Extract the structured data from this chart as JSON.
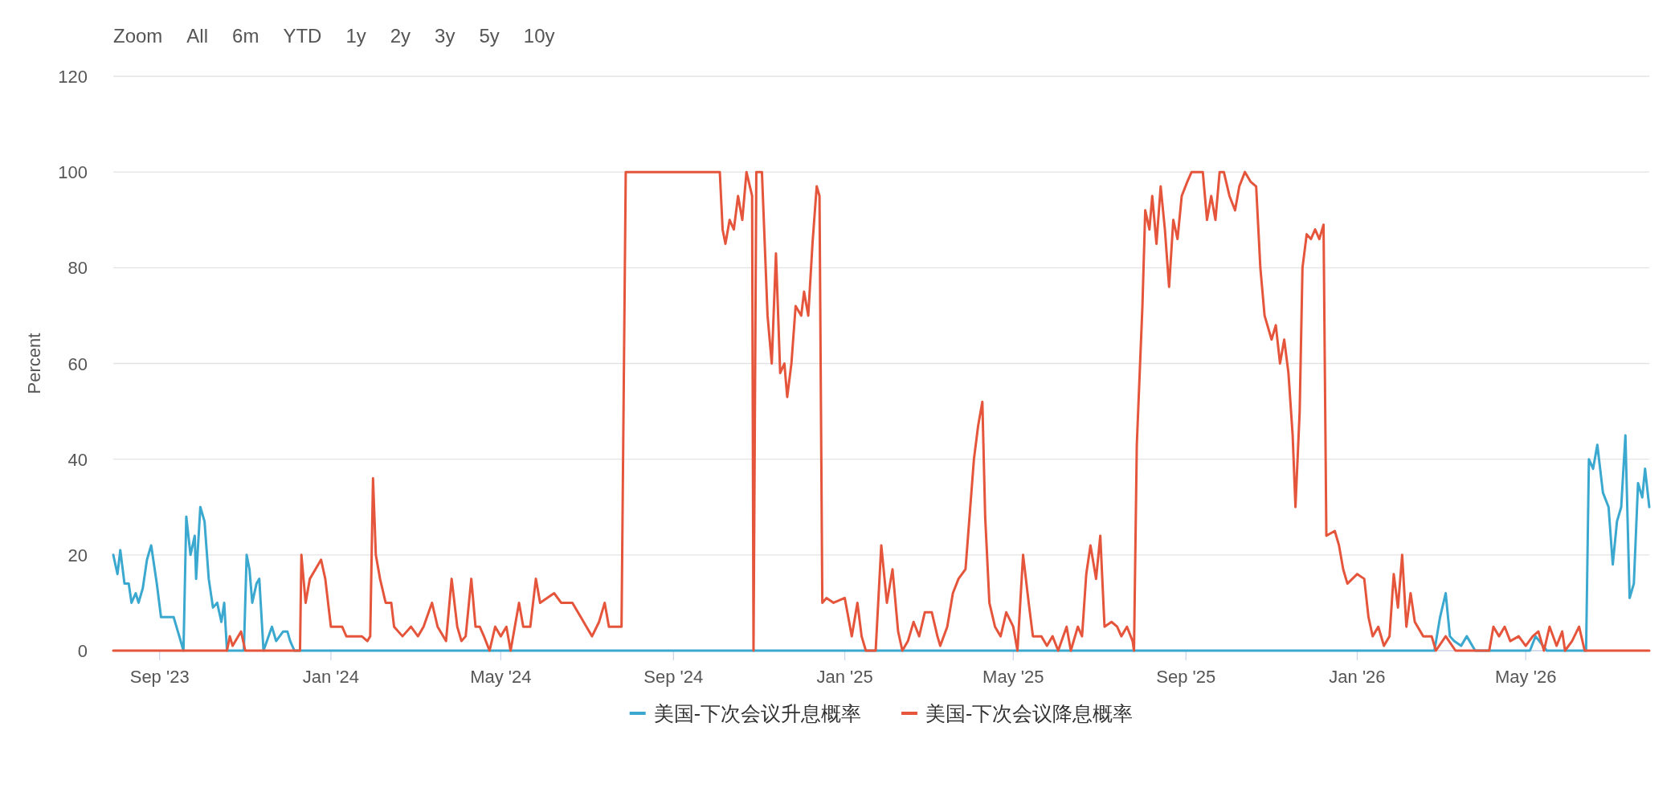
{
  "chart_data": {
    "type": "line",
    "ylabel": "Percent",
    "annotations": [
      "Zoom",
      "All",
      "6m",
      "YTD",
      "1y",
      "2y",
      "3y",
      "5y",
      "10y"
    ],
    "xlim": [
      "2023-07-30",
      "2026-07-28"
    ],
    "xticks": [
      {
        "value": "2023-09-01",
        "label": "Sep '23"
      },
      {
        "value": "2024-01-01",
        "label": "Jan '24"
      },
      {
        "value": "2024-05-01",
        "label": "May '24"
      },
      {
        "value": "2024-09-01",
        "label": "Sep '24"
      },
      {
        "value": "2025-01-01",
        "label": "Jan '25"
      },
      {
        "value": "2025-05-01",
        "label": "May '25"
      },
      {
        "value": "2025-09-01",
        "label": "Sep '25"
      },
      {
        "value": "2026-01-01",
        "label": "Jan '26"
      },
      {
        "value": "2026-05-01",
        "label": "May '26"
      }
    ],
    "ylim": [
      0,
      120
    ],
    "yticks": [
      0,
      20,
      40,
      60,
      80,
      100,
      120
    ],
    "grid": "y",
    "legend": "bottom",
    "marker": "none",
    "line_style": "solid",
    "series": [
      {
        "name": "美国-下次会议升息概率",
        "color": "#3ba8cf",
        "x": [
          "2023-07-30",
          "2023-08-02",
          "2023-08-04",
          "2023-08-07",
          "2023-08-10",
          "2023-08-12",
          "2023-08-15",
          "2023-08-17",
          "2023-08-20",
          "2023-08-23",
          "2023-08-26",
          "2023-08-30",
          "2023-09-02",
          "2023-09-11",
          "2023-09-14",
          "2023-09-17",
          "2023-09-18",
          "2023-09-20",
          "2023-09-23",
          "2023-09-26",
          "2023-09-27",
          "2023-09-30",
          "2023-10-03",
          "2023-10-06",
          "2023-10-09",
          "2023-10-12",
          "2023-10-15",
          "2023-10-17",
          "2023-10-19",
          "2023-10-31",
          "2023-11-02",
          "2023-11-04",
          "2023-11-06",
          "2023-11-09",
          "2023-11-11",
          "2023-11-14",
          "2023-11-20",
          "2023-11-23",
          "2023-11-28",
          "2023-12-01",
          "2023-12-03",
          "2023-12-06",
          "2026-02-25",
          "2026-03-01",
          "2026-03-05",
          "2026-03-08",
          "2026-03-11",
          "2026-03-16",
          "2026-03-20",
          "2026-03-26",
          "2026-05-04",
          "2026-05-08",
          "2026-05-16",
          "2026-06-13",
          "2026-06-15",
          "2026-06-18",
          "2026-06-21",
          "2026-06-25",
          "2026-06-29",
          "2026-07-02",
          "2026-07-05",
          "2026-07-08",
          "2026-07-11",
          "2026-07-14",
          "2026-07-17",
          "2026-07-20",
          "2026-07-23",
          "2026-07-25",
          "2026-07-28"
        ],
        "values": [
          20,
          16,
          21,
          14,
          14,
          10,
          12,
          10,
          13,
          19,
          22,
          14,
          7,
          7,
          4,
          1,
          0,
          28,
          20,
          24,
          15,
          30,
          27,
          15,
          9,
          10,
          6,
          10,
          0,
          0,
          20,
          17,
          10,
          14,
          15,
          0,
          5,
          2,
          4,
          4,
          2,
          0,
          0,
          7,
          12,
          3,
          2,
          1,
          3,
          0,
          0,
          3,
          0,
          0,
          40,
          38,
          43,
          33,
          30,
          18,
          27,
          30,
          45,
          11,
          14,
          35,
          32,
          38,
          30
        ]
      },
      {
        "name": "美国-下次会议降息概率",
        "color": "#e5553b",
        "x": [
          "2023-07-30",
          "2023-10-19",
          "2023-10-21",
          "2023-10-23",
          "2023-10-29",
          "2023-11-01",
          "2023-12-10",
          "2023-12-11",
          "2023-12-14",
          "2023-12-17",
          "2023-12-21",
          "2023-12-25",
          "2023-12-28",
          "2024-01-01",
          "2024-01-09",
          "2024-01-12",
          "2024-01-23",
          "2024-01-27",
          "2024-01-29",
          "2024-01-31",
          "2024-02-02",
          "2024-02-05",
          "2024-02-09",
          "2024-02-13",
          "2024-02-15",
          "2024-02-21",
          "2024-02-27",
          "2024-03-03",
          "2024-03-07",
          "2024-03-13",
          "2024-03-17",
          "2024-03-23",
          "2024-03-27",
          "2024-03-31",
          "2024-04-03",
          "2024-04-06",
          "2024-04-10",
          "2024-04-13",
          "2024-04-16",
          "2024-04-19",
          "2024-04-23",
          "2024-04-27",
          "2024-05-01",
          "2024-05-05",
          "2024-05-08",
          "2024-05-14",
          "2024-05-17",
          "2024-05-22",
          "2024-05-26",
          "2024-05-29",
          "2024-06-08",
          "2024-06-13",
          "2024-06-21",
          "2024-06-27",
          "2024-07-01",
          "2024-07-05",
          "2024-07-10",
          "2024-07-14",
          "2024-07-17",
          "2024-07-22",
          "2024-07-26",
          "2024-07-29",
          "2024-08-24",
          "2024-10-04",
          "2024-10-06",
          "2024-10-08",
          "2024-10-11",
          "2024-10-14",
          "2024-10-17",
          "2024-10-20",
          "2024-10-23",
          "2024-10-27",
          "2024-10-28",
          "2024-10-30",
          "2024-11-03",
          "2024-11-07",
          "2024-11-10",
          "2024-11-13",
          "2024-11-16",
          "2024-11-19",
          "2024-11-21",
          "2024-11-24",
          "2024-11-27",
          "2024-12-01",
          "2024-12-03",
          "2024-12-06",
          "2024-12-09",
          "2024-12-12",
          "2024-12-14",
          "2024-12-16",
          "2024-12-19",
          "2024-12-24",
          "2025-01-01",
          "2025-01-06",
          "2025-01-10",
          "2025-01-13",
          "2025-01-16",
          "2025-01-23",
          "2025-01-27",
          "2025-01-31",
          "2025-02-04",
          "2025-02-08",
          "2025-02-11",
          "2025-02-15",
          "2025-02-19",
          "2025-02-23",
          "2025-02-27",
          "2025-03-04",
          "2025-03-08",
          "2025-03-10",
          "2025-03-15",
          "2025-03-19",
          "2025-03-23",
          "2025-03-28",
          "2025-04-03",
          "2025-04-06",
          "2025-04-09",
          "2025-04-11",
          "2025-04-14",
          "2025-04-18",
          "2025-04-22",
          "2025-04-26",
          "2025-05-01",
          "2025-05-04",
          "2025-05-08",
          "2025-05-12",
          "2025-05-15",
          "2025-05-21",
          "2025-05-25",
          "2025-05-29",
          "2025-06-02",
          "2025-06-08",
          "2025-06-11",
          "2025-06-16",
          "2025-06-19",
          "2025-06-22",
          "2025-06-25",
          "2025-06-29",
          "2025-07-02",
          "2025-07-05",
          "2025-07-10",
          "2025-07-14",
          "2025-07-17",
          "2025-07-21",
          "2025-07-25",
          "2025-07-26",
          "2025-07-28",
          "2025-08-01",
          "2025-08-03",
          "2025-08-06",
          "2025-08-08",
          "2025-08-11",
          "2025-08-14",
          "2025-08-17",
          "2025-08-20",
          "2025-08-23",
          "2025-08-26",
          "2025-08-29",
          "2025-09-02",
          "2025-09-05",
          "2025-09-13",
          "2025-09-16",
          "2025-09-19",
          "2025-09-22",
          "2025-09-25",
          "2025-09-28",
          "2025-10-02",
          "2025-10-06",
          "2025-10-09",
          "2025-10-13",
          "2025-10-17",
          "2025-10-21",
          "2025-10-24",
          "2025-10-27",
          "2025-11-01",
          "2025-11-04",
          "2025-11-07",
          "2025-11-10",
          "2025-11-13",
          "2025-11-16",
          "2025-11-18",
          "2025-11-21",
          "2025-11-23",
          "2025-11-26",
          "2025-11-29",
          "2025-12-02",
          "2025-12-05",
          "2025-12-08",
          "2025-12-10",
          "2025-12-16",
          "2025-12-19",
          "2025-12-22",
          "2025-12-25",
          "2026-01-01",
          "2026-01-06",
          "2026-01-09",
          "2026-01-12",
          "2026-01-16",
          "2026-01-20",
          "2026-01-24",
          "2026-01-27",
          "2026-01-30",
          "2026-02-02",
          "2026-02-05",
          "2026-02-08",
          "2026-02-11",
          "2026-02-17",
          "2026-02-23",
          "2026-02-26",
          "2026-03-05",
          "2026-03-12",
          "2026-04-05",
          "2026-04-08",
          "2026-04-12",
          "2026-04-16",
          "2026-04-20",
          "2026-04-26",
          "2026-05-01",
          "2026-05-06",
          "2026-05-10",
          "2026-05-14",
          "2026-05-18",
          "2026-05-23",
          "2026-05-27",
          "2026-05-29",
          "2026-06-03",
          "2026-06-08",
          "2026-06-12",
          "2026-07-28"
        ],
        "values": [
          0,
          0,
          3,
          1,
          4,
          0,
          0,
          20,
          10,
          15,
          17,
          19,
          15,
          5,
          5,
          3,
          3,
          2,
          3,
          36,
          20,
          15,
          10,
          10,
          5,
          3,
          5,
          3,
          5,
          10,
          5,
          2,
          15,
          5,
          2,
          3,
          15,
          5,
          5,
          3,
          0,
          5,
          3,
          5,
          0,
          10,
          5,
          5,
          15,
          10,
          12,
          10,
          10,
          7,
          5,
          3,
          6,
          10,
          5,
          5,
          5,
          100,
          100,
          100,
          88,
          85,
          90,
          88,
          95,
          90,
          100,
          95,
          0,
          100,
          100,
          70,
          60,
          83,
          58,
          60,
          53,
          60,
          72,
          70,
          75,
          70,
          85,
          97,
          95,
          10,
          11,
          10,
          11,
          3,
          10,
          3,
          0,
          0,
          22,
          10,
          17,
          4,
          0,
          2,
          6,
          3,
          8,
          8,
          3,
          1,
          5,
          12,
          15,
          17,
          40,
          47,
          52,
          28,
          10,
          5,
          3,
          8,
          5,
          0,
          20,
          10,
          3,
          3,
          1,
          3,
          0,
          5,
          0,
          5,
          3,
          16,
          22,
          15,
          24,
          5,
          6,
          5,
          3,
          5,
          2,
          0,
          43,
          72,
          92,
          88,
          95,
          85,
          97,
          88,
          76,
          90,
          86,
          95,
          98,
          100,
          100,
          90,
          95,
          90,
          100,
          100,
          95,
          92,
          97,
          100,
          98,
          97,
          80,
          70,
          65,
          68,
          60,
          65,
          58,
          45,
          30,
          50,
          80,
          87,
          86,
          88,
          86,
          89,
          24,
          25,
          22,
          17,
          14,
          16,
          15,
          7,
          3,
          5,
          1,
          3,
          16,
          9,
          20,
          5,
          12,
          6,
          3,
          3,
          0,
          3,
          0,
          0,
          5,
          3,
          5,
          2,
          3,
          1,
          3,
          4,
          0,
          5,
          1,
          4,
          0,
          2,
          5,
          0,
          0
        ]
      }
    ]
  }
}
